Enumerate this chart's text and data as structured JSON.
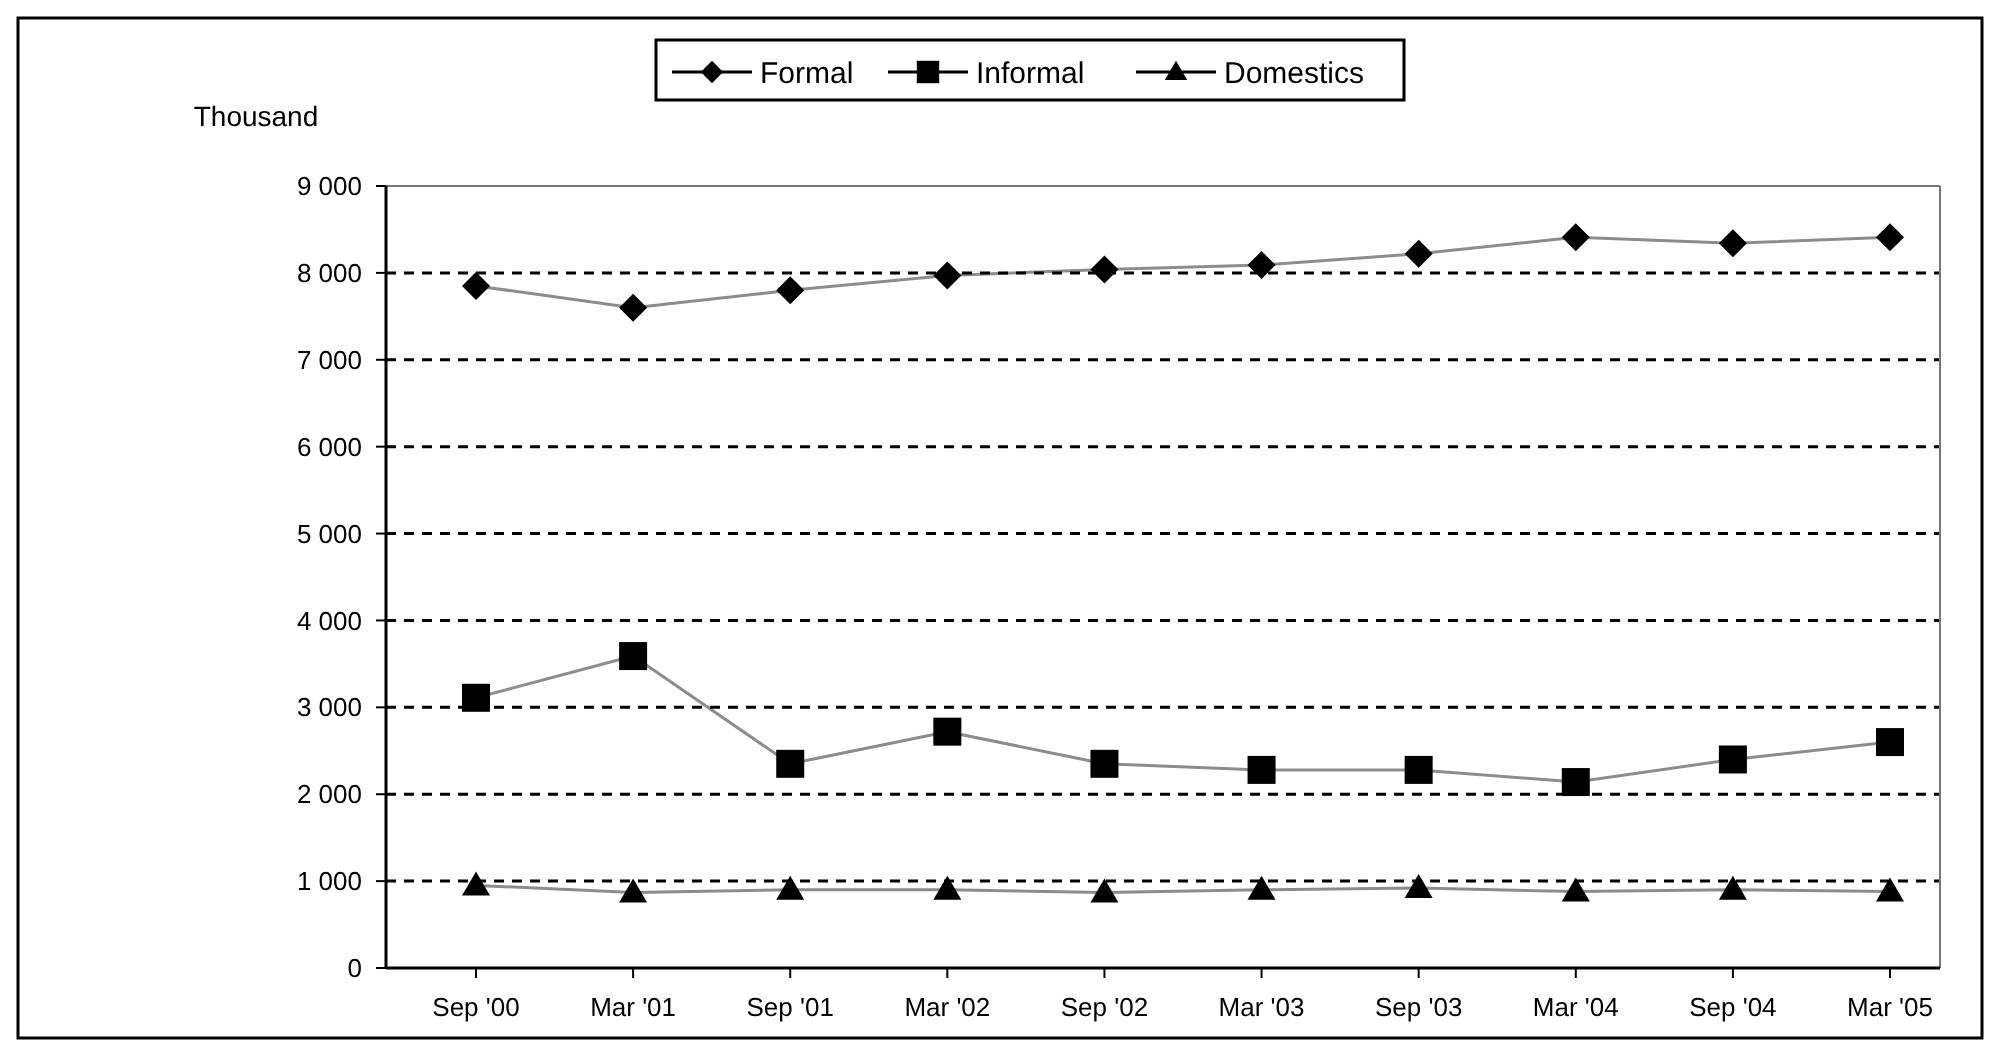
{
  "chart_data": {
    "type": "line",
    "ylabel": "Thousand",
    "categories": [
      "Sep '00",
      "Mar '01",
      "Sep '01",
      "Mar '02",
      "Sep '02",
      "Mar '03",
      "Sep '03",
      "Mar '04",
      "Sep '04",
      "Mar '05"
    ],
    "series": [
      {
        "name": "Formal",
        "color": "#000000",
        "marker": "diamond",
        "values": [
          7850,
          7600,
          7800,
          7970,
          8040,
          8090,
          8220,
          8410,
          8340,
          8410
        ]
      },
      {
        "name": "Informal",
        "color": "#000000",
        "marker": "square",
        "values": [
          3110,
          3590,
          2350,
          2720,
          2350,
          2280,
          2280,
          2140,
          2400,
          2600
        ]
      },
      {
        "name": "Domestics",
        "color": "#000000",
        "marker": "triangle",
        "values": [
          950,
          870,
          900,
          900,
          870,
          900,
          920,
          880,
          900,
          880
        ]
      }
    ],
    "ylim": [
      0,
      9000
    ],
    "yticks": [
      {
        "value": 0,
        "label": "0"
      },
      {
        "value": 1000,
        "label": "1 000"
      },
      {
        "value": 2000,
        "label": "2 000"
      },
      {
        "value": 3000,
        "label": "3 000"
      },
      {
        "value": 4000,
        "label": "4 000"
      },
      {
        "value": 5000,
        "label": "5 000"
      },
      {
        "value": 6000,
        "label": "6 000"
      },
      {
        "value": 7000,
        "label": "7 000"
      },
      {
        "value": 8000,
        "label": "8 000"
      },
      {
        "value": 9000,
        "label": "9 000"
      }
    ],
    "grid": "y",
    "legend": "top",
    "line_style": "solid"
  }
}
